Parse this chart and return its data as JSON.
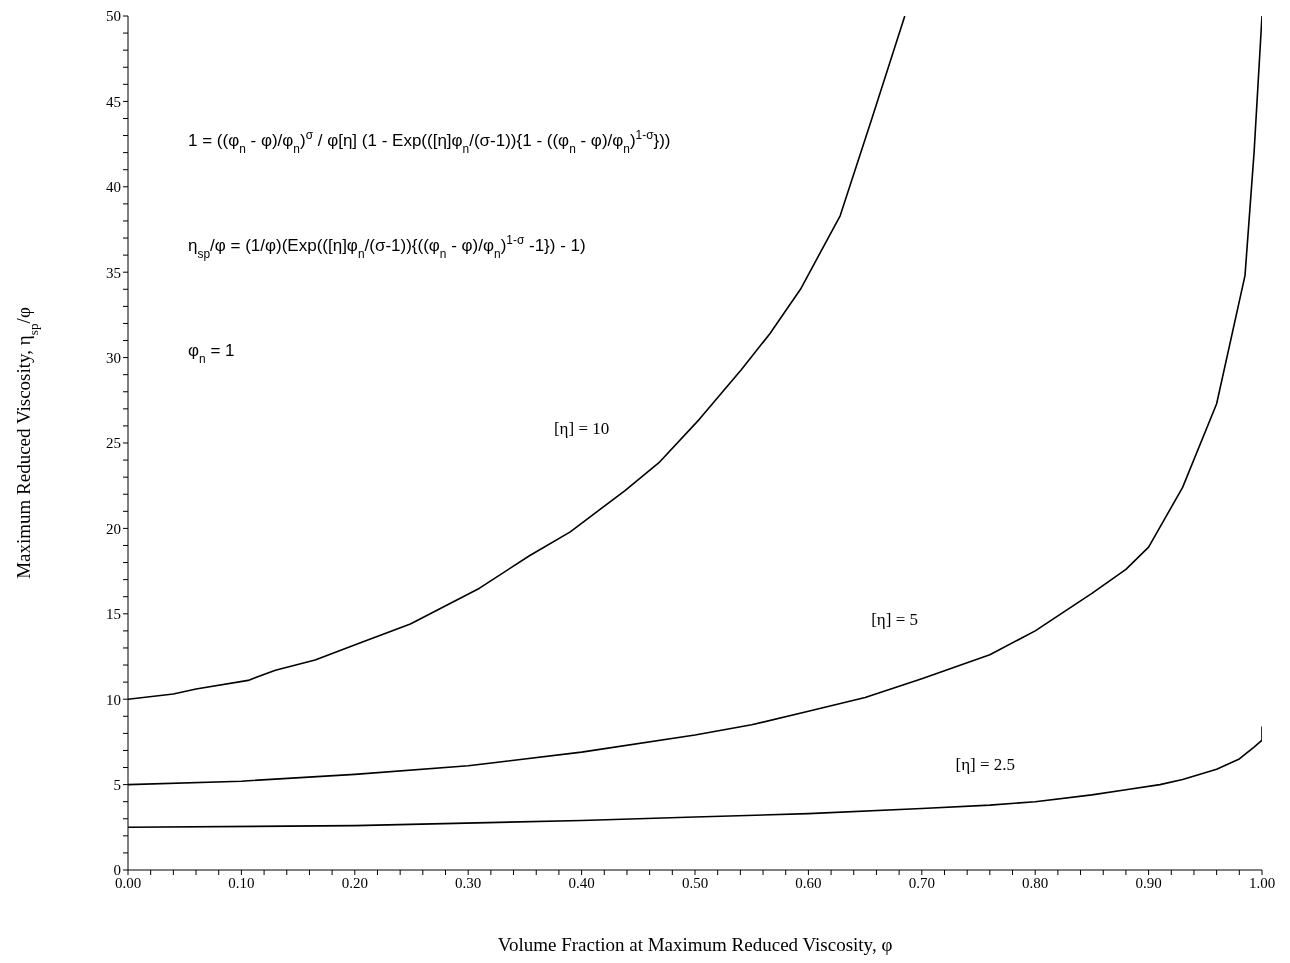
{
  "chart_data": {
    "type": "line",
    "xlabel": "Volume Fraction at Maximum Reduced Viscosity, φ",
    "ylabel": "Maximum Reduced Viscosity,  η$_{sp}$/φ",
    "xlim": [
      0,
      1
    ],
    "ylim": [
      0,
      50
    ],
    "xticks": [
      {
        "value": 0,
        "label": "0.00"
      },
      {
        "value": 0.02,
        "label": null
      },
      {
        "value": 0.04,
        "label": null
      },
      {
        "value": 0.06,
        "label": null
      },
      {
        "value": 0.08,
        "label": null
      },
      {
        "value": 0.1,
        "label": "0.10"
      },
      {
        "value": 0.12,
        "label": null
      },
      {
        "value": 0.14,
        "label": null
      },
      {
        "value": 0.16,
        "label": null
      },
      {
        "value": 0.18,
        "label": null
      },
      {
        "value": 0.2,
        "label": "0.20"
      },
      {
        "value": 0.22,
        "label": null
      },
      {
        "value": 0.24,
        "label": null
      },
      {
        "value": 0.26,
        "label": null
      },
      {
        "value": 0.28,
        "label": null
      },
      {
        "value": 0.3,
        "label": "0.30"
      },
      {
        "value": 0.32,
        "label": null
      },
      {
        "value": 0.34,
        "label": null
      },
      {
        "value": 0.36,
        "label": null
      },
      {
        "value": 0.38,
        "label": null
      },
      {
        "value": 0.4,
        "label": "0.40"
      },
      {
        "value": 0.42,
        "label": null
      },
      {
        "value": 0.44,
        "label": null
      },
      {
        "value": 0.46,
        "label": null
      },
      {
        "value": 0.48,
        "label": null
      },
      {
        "value": 0.5,
        "label": "0.50"
      },
      {
        "value": 0.52,
        "label": null
      },
      {
        "value": 0.54,
        "label": null
      },
      {
        "value": 0.56,
        "label": null
      },
      {
        "value": 0.58,
        "label": null
      },
      {
        "value": 0.6,
        "label": "0.60"
      },
      {
        "value": 0.62,
        "label": null
      },
      {
        "value": 0.64,
        "label": null
      },
      {
        "value": 0.66,
        "label": null
      },
      {
        "value": 0.68,
        "label": null
      },
      {
        "value": 0.7,
        "label": "0.70"
      },
      {
        "value": 0.72,
        "label": null
      },
      {
        "value": 0.74,
        "label": null
      },
      {
        "value": 0.76,
        "label": null
      },
      {
        "value": 0.78,
        "label": null
      },
      {
        "value": 0.8,
        "label": "0.80"
      },
      {
        "value": 0.82,
        "label": null
      },
      {
        "value": 0.84,
        "label": null
      },
      {
        "value": 0.86,
        "label": null
      },
      {
        "value": 0.88,
        "label": null
      },
      {
        "value": 0.9,
        "label": "0.90"
      },
      {
        "value": 0.92,
        "label": null
      },
      {
        "value": 0.94,
        "label": null
      },
      {
        "value": 0.96,
        "label": null
      },
      {
        "value": 0.98,
        "label": null
      },
      {
        "value": 1,
        "label": "1.00"
      }
    ],
    "yticks": [
      0,
      {
        "value": 1,
        "label": null
      },
      {
        "value": 2,
        "label": null
      },
      {
        "value": 3,
        "label": null
      },
      {
        "value": 4,
        "label": null
      },
      5,
      {
        "value": 6,
        "label": null
      },
      {
        "value": 7,
        "label": null
      },
      {
        "value": 8,
        "label": null
      },
      {
        "value": 9,
        "label": null
      },
      10,
      {
        "value": 11,
        "label": null
      },
      {
        "value": 12,
        "label": null
      },
      {
        "value": 13,
        "label": null
      },
      {
        "value": 14,
        "label": null
      },
      15,
      {
        "value": 16,
        "label": null
      },
      {
        "value": 17,
        "label": null
      },
      {
        "value": 18,
        "label": null
      },
      {
        "value": 19,
        "label": null
      },
      20,
      {
        "value": 21,
        "label": null
      },
      {
        "value": 22,
        "label": null
      },
      {
        "value": 23,
        "label": null
      },
      {
        "value": 24,
        "label": null
      },
      25,
      {
        "value": 26,
        "label": null
      },
      {
        "value": 27,
        "label": null
      },
      {
        "value": 28,
        "label": null
      },
      {
        "value": 29,
        "label": null
      },
      30,
      {
        "value": 31,
        "label": null
      },
      {
        "value": 32,
        "label": null
      },
      {
        "value": 33,
        "label": null
      },
      {
        "value": 34,
        "label": null
      },
      35,
      {
        "value": 36,
        "label": null
      },
      {
        "value": 37,
        "label": null
      },
      {
        "value": 38,
        "label": null
      },
      {
        "value": 39,
        "label": null
      },
      40,
      {
        "value": 41,
        "label": null
      },
      {
        "value": 42,
        "label": null
      },
      {
        "value": 43,
        "label": null
      },
      {
        "value": 44,
        "label": null
      },
      45,
      {
        "value": 46,
        "label": null
      },
      {
        "value": 47,
        "label": null
      },
      {
        "value": 48,
        "label": null
      },
      {
        "value": 49,
        "label": null
      },
      50
    ],
    "marker": "none",
    "line_style": "solid",
    "series": [
      {
        "name": "[η] = 10",
        "color": "#000000",
        "x": [
          0,
          0.04,
          0.06,
          0.106,
          0.13,
          0.165,
          0.205,
          0.249,
          0.31,
          0.354,
          0.39,
          0.438,
          0.469,
          0.504,
          0.541,
          0.566,
          0.593,
          0.628,
          0.656,
          0.685
        ],
        "values": [
          10.0,
          10.3,
          10.6,
          11.1,
          11.7,
          12.3,
          13.3,
          14.4,
          16.5,
          18.4,
          19.8,
          22.2,
          23.9,
          26.4,
          29.3,
          31.4,
          34.0,
          38.3,
          44.0,
          50
        ]
      },
      {
        "name": "[η] = 5",
        "color": "#000000",
        "x": [
          0,
          0.1,
          0.2,
          0.3,
          0.4,
          0.5,
          0.55,
          0.6,
          0.65,
          0.7,
          0.76,
          0.8,
          0.85,
          0.88,
          0.9,
          0.93,
          0.96,
          0.985,
          0.993,
          1.0
        ],
        "values": [
          5.0,
          5.2,
          5.6,
          6.1,
          6.9,
          7.9,
          8.5,
          9.3,
          10.1,
          11.2,
          12.6,
          14.0,
          16.2,
          17.6,
          18.9,
          22.4,
          27.3,
          34.8,
          42.0,
          50
        ]
      },
      {
        "name": "[η] = 2.5",
        "color": "#000000",
        "x": [
          0,
          0.2,
          0.4,
          0.5,
          0.6,
          0.7,
          0.76,
          0.8,
          0.85,
          0.88,
          0.91,
          0.93,
          0.96,
          0.98,
          0.993,
          1.0,
          1.0
        ],
        "values": [
          2.5,
          2.6,
          2.9,
          3.1,
          3.3,
          3.6,
          3.8,
          4.0,
          4.4,
          4.7,
          5.0,
          5.3,
          5.9,
          6.5,
          7.2,
          7.6,
          8.4
        ]
      }
    ],
    "annotations": [
      "1 = ((φ$_{n}$ - φ)/φ$_{n}$)$^{σ}$ / φ[η]  (1 - Exp(([η]φ$_{n}$/(σ-1)){1 - ((φ$_{n}$ - φ)/φ$_{n}$)$^{1-σ}$}))",
      "η$_{sp}$/φ = (1/φ)(Exp(([η]φ$_{n}$/(σ-1)){((φ$_{n}$ - φ)/φ$_{n}$)$^{1-σ}$ -1}) - 1)",
      "φ$_{n}$ =  1"
    ]
  }
}
